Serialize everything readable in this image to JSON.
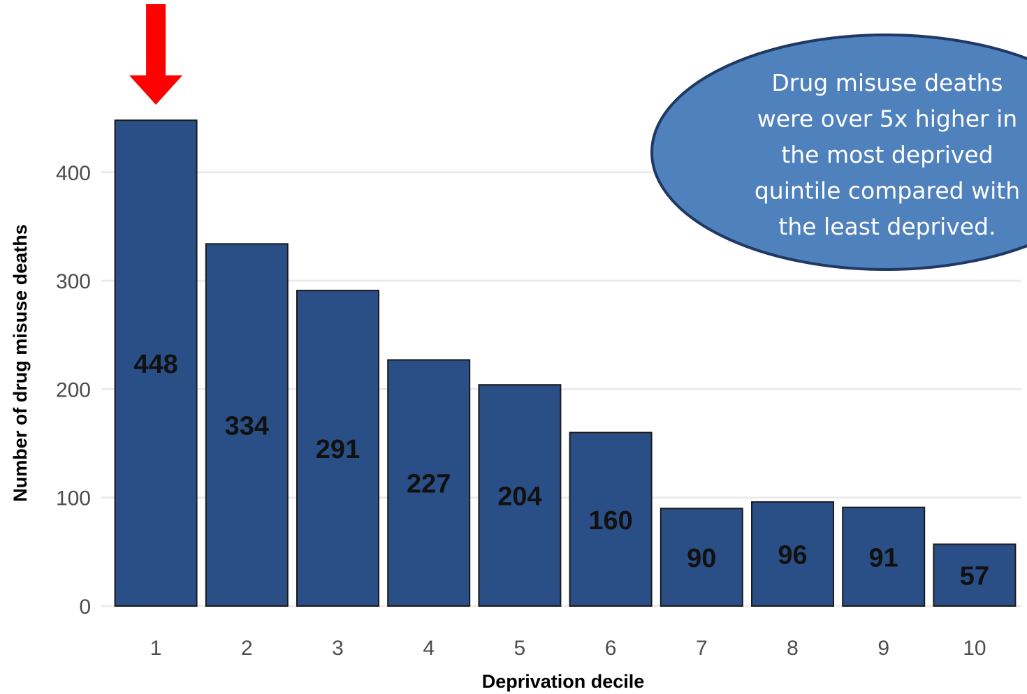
{
  "chart_data": {
    "type": "bar",
    "categories": [
      "1",
      "2",
      "3",
      "4",
      "5",
      "6",
      "7",
      "8",
      "9",
      "10"
    ],
    "values": [
      448,
      334,
      291,
      227,
      204,
      160,
      90,
      96,
      91,
      57
    ],
    "data_labels": [
      "448",
      "334",
      "291",
      "227",
      "204",
      "160",
      "90",
      "96",
      "91",
      "57"
    ],
    "title": "",
    "xlabel": "Deprivation decile",
    "ylabel": "Number of drug misuse deaths",
    "ylim": [
      0,
      450
    ],
    "yticks": [
      0,
      100,
      200,
      300,
      400
    ],
    "grid": true,
    "bar_color": "#2a4f86",
    "bar_edge_color": "#1a1a1a",
    "grid_color": "#ebebeb",
    "highlight": {
      "category": "1",
      "marker": "red-down-arrow",
      "color": "#ff0000"
    },
    "annotation": {
      "lines": [
        "Drug misuse deaths",
        "were over 5x higher in",
        "the most deprived",
        "quintile compared with",
        "the least deprived."
      ],
      "fill": "#4f81bd",
      "border": "#1f3864"
    }
  }
}
